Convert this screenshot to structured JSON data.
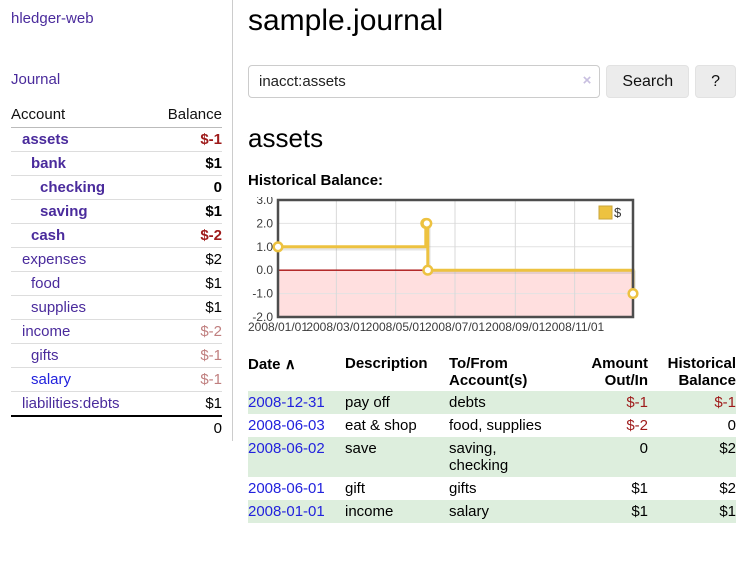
{
  "app": {
    "brand": "hledger-web",
    "nav_journal": "Journal"
  },
  "colors": {
    "accent_purple": "#4a2b9c",
    "link_blue": "#2222dd",
    "negative_red": "#9e1a1a",
    "muted_negative_rose": "#c07f7f",
    "row_green": "#ddeedd",
    "chart_gold": "#edc240",
    "chart_negative_fill": "#ffdfdf",
    "chart_zero_line": "#aa1111"
  },
  "header": {
    "title": "sample.journal"
  },
  "search": {
    "value": "inacct:assets",
    "clear_icon": "×",
    "button_label": "Search",
    "help_label": "?"
  },
  "sidebar": {
    "accounts_header": {
      "account": "Account",
      "balance": "Balance"
    },
    "accounts": [
      {
        "name": "assets",
        "depth": 1,
        "balance": "$-1",
        "bold": true,
        "balance_color": "neg"
      },
      {
        "name": "bank",
        "depth": 2,
        "balance": "$1",
        "bold": true,
        "balance_color": ""
      },
      {
        "name": "checking",
        "depth": 3,
        "balance": "0",
        "bold": true,
        "balance_color": ""
      },
      {
        "name": "saving",
        "depth": 3,
        "balance": "$1",
        "bold": true,
        "balance_color": ""
      },
      {
        "name": "cash",
        "depth": 2,
        "balance": "$-2",
        "bold": true,
        "balance_color": "neg"
      },
      {
        "name": "expenses",
        "depth": 1,
        "balance": "$2",
        "bold": false,
        "balance_color": ""
      },
      {
        "name": "food",
        "depth": 2,
        "balance": "$1",
        "bold": false,
        "balance_color": ""
      },
      {
        "name": "supplies",
        "depth": 2,
        "balance": "$1",
        "bold": false,
        "balance_color": ""
      },
      {
        "name": "income",
        "depth": 1,
        "balance": "$-2",
        "bold": false,
        "balance_color": "muted"
      },
      {
        "name": "gifts",
        "depth": 2,
        "balance": "$-1",
        "bold": false,
        "balance_color": "muted"
      },
      {
        "name": "salary",
        "depth": 2,
        "balance": "$-1",
        "bold": false,
        "balance_color": "muted",
        "link_color": "blue"
      },
      {
        "name": "liabilities:debts",
        "depth": 1,
        "balance": "$1",
        "bold": false,
        "balance_color": ""
      }
    ],
    "total": "0"
  },
  "account_page": {
    "title": "assets",
    "chart_label": "Historical Balance:"
  },
  "chart_data": {
    "type": "line",
    "step": true,
    "title": "Historical Balance:",
    "legend": "$",
    "legend_position": "top-right",
    "grid": true,
    "ylim": [
      -2,
      3
    ],
    "yticks": [
      "3.0",
      "2.0",
      "1.0",
      "0.0",
      "-1.0",
      "-2.0"
    ],
    "xticks": [
      "2008/01/01",
      "2008/03/01",
      "2008/05/01",
      "2008/07/01",
      "2008/09/01",
      "2008/11/01"
    ],
    "xrange": [
      "2008-01-01",
      "2008-12-31"
    ],
    "series": [
      {
        "name": "$",
        "color": "#edc240",
        "points": [
          [
            "2008-01-01",
            1
          ],
          [
            "2008-06-01",
            2
          ],
          [
            "2008-06-02",
            2
          ],
          [
            "2008-06-03",
            0
          ],
          [
            "2008-12-31",
            -1
          ]
        ]
      }
    ]
  },
  "register": {
    "headers": {
      "date": "Date",
      "sort_icon": "∧",
      "description": "Description",
      "accounts": "To/From Account(s)",
      "amount": "Amount Out/In",
      "balance": "Historical Balance"
    },
    "rows": [
      {
        "date": "2008-12-31",
        "description": "pay off",
        "accounts": "debts",
        "amount": "$-1",
        "amount_neg": true,
        "balance": "$-1",
        "balance_neg": true
      },
      {
        "date": "2008-06-03",
        "description": "eat & shop",
        "accounts": "food, supplies",
        "amount": "$-2",
        "amount_neg": true,
        "balance": "0",
        "balance_neg": false
      },
      {
        "date": "2008-06-02",
        "description": "save",
        "accounts": "saving, checking",
        "amount": "0",
        "amount_neg": false,
        "balance": "$2",
        "balance_neg": false
      },
      {
        "date": "2008-06-01",
        "description": "gift",
        "accounts": "gifts",
        "amount": "$1",
        "amount_neg": false,
        "balance": "$2",
        "balance_neg": false
      },
      {
        "date": "2008-01-01",
        "description": "income",
        "accounts": "salary",
        "amount": "$1",
        "amount_neg": false,
        "balance": "$1",
        "balance_neg": false
      }
    ]
  }
}
